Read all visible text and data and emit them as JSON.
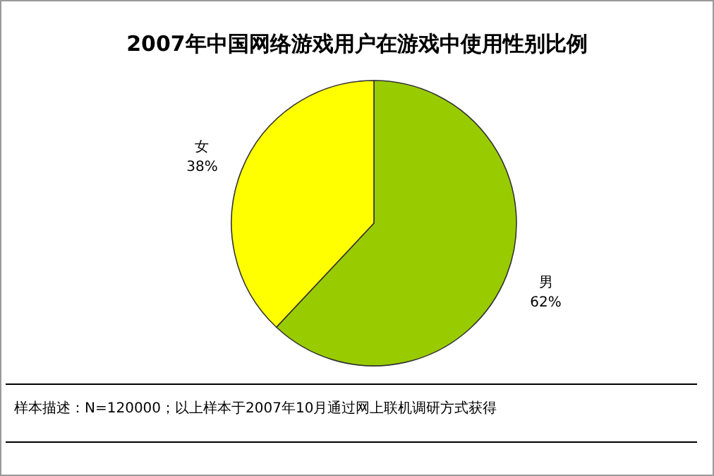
{
  "chart_data": {
    "type": "pie",
    "title": "2007年中国网络游戏用户在游戏中使用性别比例",
    "categories": [
      "男",
      "女"
    ],
    "values": [
      62,
      38
    ],
    "colors": [
      "#99cc00",
      "#ffff00"
    ],
    "value_labels": [
      "62%",
      "38%"
    ],
    "annotations": [
      "样本描述：N=120000；以上样本于2007年10月通过网上联机调研方式获得"
    ]
  }
}
